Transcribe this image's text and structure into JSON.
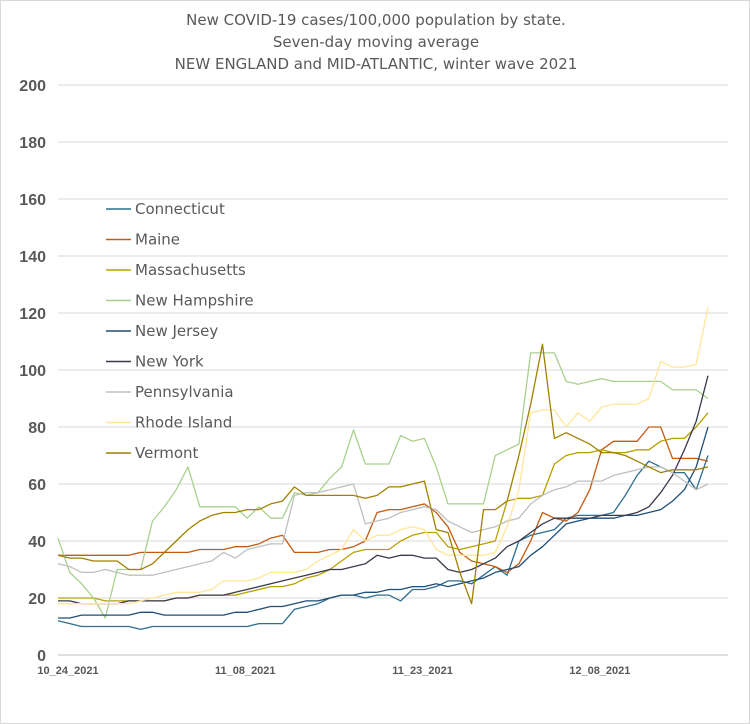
{
  "chart_data": {
    "type": "line",
    "title": "New COVID-19 cases/100,000 population by state.",
    "subtitle": "Seven-day moving average",
    "subtitle2": "NEW ENGLAND and MID-ATLANTIC, winter wave 2021",
    "xlabel": "",
    "ylabel": "",
    "ylim": [
      0,
      200
    ],
    "yticks": [
      0,
      20,
      40,
      60,
      80,
      100,
      120,
      140,
      160,
      180,
      200
    ],
    "x_ticks": [
      "10_24_2021",
      "11_08_2021",
      "11_23_2021",
      "12_08_2021"
    ],
    "x_tick_index": [
      0,
      15,
      30,
      45
    ],
    "grid": true,
    "legend_position": "left",
    "series": [
      {
        "name": "Connecticut",
        "color": "#2e6e8e",
        "values": [
          12,
          11,
          10,
          10,
          10,
          10,
          10,
          9,
          10,
          10,
          10,
          10,
          10,
          10,
          10,
          10,
          10,
          11,
          11,
          11,
          16,
          17,
          18,
          20,
          21,
          21,
          20,
          21,
          21,
          19,
          23,
          23,
          24,
          26,
          26,
          25,
          28,
          31,
          28,
          40,
          42,
          43,
          44,
          48,
          49,
          49,
          49,
          50,
          56,
          63,
          68,
          66,
          64,
          64,
          58,
          70
        ]
      },
      {
        "name": "Maine",
        "color": "#c55a11",
        "values": [
          35,
          35,
          35,
          35,
          35,
          35,
          35,
          36,
          36,
          36,
          36,
          36,
          37,
          37,
          37,
          38,
          38,
          39,
          41,
          42,
          36,
          36,
          36,
          37,
          37,
          38,
          40,
          50,
          51,
          51,
          52,
          53,
          50,
          45,
          36,
          33,
          32,
          31,
          29,
          32,
          40,
          50,
          48,
          47,
          50,
          58,
          72,
          75,
          75,
          75,
          80,
          80,
          69,
          69,
          69,
          68
        ]
      },
      {
        "name": "Massachusetts",
        "color": "#b8a000",
        "values": [
          20,
          20,
          20,
          20,
          19,
          19,
          19,
          19,
          19,
          19,
          20,
          20,
          21,
          21,
          21,
          21,
          22,
          23,
          24,
          24,
          25,
          27,
          28,
          30,
          33,
          36,
          37,
          37,
          37,
          40,
          42,
          43,
          43,
          38,
          37,
          38,
          39,
          40,
          54,
          55,
          55,
          56,
          67,
          70,
          71,
          71,
          72,
          71,
          71,
          72,
          72,
          75,
          76,
          76,
          80,
          85
        ]
      },
      {
        "name": "New Hampshire",
        "color": "#a9d18e",
        "values": [
          41,
          29,
          25,
          20,
          13,
          30,
          30,
          30,
          47,
          52,
          58,
          66,
          52,
          52,
          52,
          52,
          48,
          52,
          48,
          48,
          57,
          56,
          57,
          62,
          66,
          79,
          67,
          67,
          67,
          77,
          75,
          76,
          66,
          53,
          53,
          53,
          53,
          70,
          72,
          74,
          106,
          106,
          106,
          96,
          95,
          96,
          97,
          96,
          96,
          96,
          96,
          96,
          93,
          93,
          93,
          90
        ]
      },
      {
        "name": "New Jersey",
        "color": "#1f4e79",
        "values": [
          13,
          13,
          14,
          14,
          14,
          14,
          14,
          15,
          15,
          14,
          14,
          14,
          14,
          14,
          14,
          15,
          15,
          16,
          17,
          17,
          18,
          19,
          19,
          20,
          21,
          21,
          22,
          22,
          23,
          23,
          24,
          24,
          25,
          24,
          25,
          26,
          27,
          29,
          30,
          31,
          35,
          38,
          42,
          46,
          47,
          48,
          48,
          48,
          49,
          49,
          50,
          51,
          54,
          58,
          66,
          80
        ]
      },
      {
        "name": "New York",
        "color": "#3a3a4f",
        "values": [
          19,
          19,
          18,
          18,
          18,
          18,
          19,
          19,
          19,
          19,
          20,
          20,
          21,
          21,
          21,
          22,
          23,
          24,
          25,
          26,
          27,
          28,
          29,
          30,
          30,
          31,
          32,
          35,
          34,
          35,
          35,
          34,
          34,
          30,
          29,
          30,
          32,
          34,
          38,
          40,
          43,
          46,
          48,
          48,
          48,
          48,
          49,
          49,
          49,
          50,
          52,
          57,
          63,
          72,
          82,
          98
        ]
      },
      {
        "name": "Pennsylvania",
        "color": "#bfbfbf",
        "values": [
          32,
          31,
          29,
          29,
          30,
          29,
          28,
          28,
          28,
          29,
          30,
          31,
          32,
          33,
          36,
          34,
          37,
          38,
          39,
          39,
          56,
          57,
          57,
          58,
          59,
          60,
          46,
          47,
          48,
          50,
          51,
          52,
          51,
          47,
          45,
          43,
          44,
          45,
          47,
          48,
          53,
          56,
          58,
          59,
          61,
          61,
          61,
          63,
          64,
          65,
          66,
          66,
          64,
          61,
          58,
          60
        ]
      },
      {
        "name": "Rhode Island",
        "color": "#ffe699",
        "values": [
          18,
          18,
          18,
          18,
          18,
          18,
          18,
          19,
          20,
          21,
          22,
          22,
          22,
          23,
          26,
          26,
          26,
          27,
          29,
          29,
          29,
          30,
          33,
          35,
          37,
          44,
          40,
          42,
          42,
          44,
          45,
          44,
          37,
          35,
          35,
          35,
          35,
          36,
          45,
          58,
          85,
          86,
          86,
          80,
          85,
          82,
          87,
          88,
          88,
          88,
          90,
          103,
          101,
          101,
          102,
          122
        ]
      },
      {
        "name": "Vermont",
        "color": "#a08000",
        "values": [
          35,
          34,
          34,
          33,
          33,
          33,
          30,
          30,
          32,
          36,
          40,
          44,
          47,
          49,
          50,
          50,
          51,
          51,
          53,
          54,
          59,
          56,
          56,
          56,
          56,
          56,
          55,
          56,
          59,
          59,
          60,
          61,
          44,
          43,
          29,
          18,
          51,
          51,
          54,
          70,
          88,
          109,
          76,
          78,
          76,
          74,
          71,
          71,
          70,
          68,
          66,
          64,
          65,
          65,
          65,
          66
        ]
      }
    ]
  }
}
